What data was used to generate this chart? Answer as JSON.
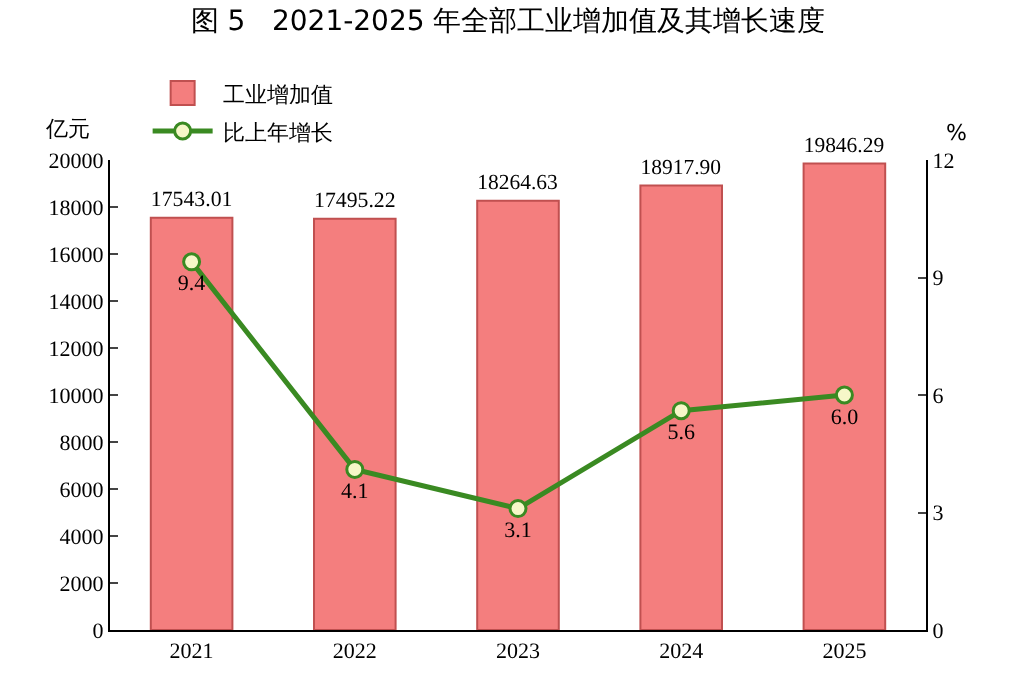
{
  "chart_data": {
    "type": "bar",
    "title": "图 5   2021-2025 年全部工业增加值及其增长速度",
    "ylabel": "亿元",
    "y2label": "%",
    "categories": [
      "2021",
      "2022",
      "2023",
      "2024",
      "2025"
    ],
    "series": [
      {
        "name": "工业增加值",
        "color": "#f47e7e",
        "values": [
          17543.01,
          17495.22,
          18264.63,
          18917.9,
          19846.29
        ],
        "value_labels": [
          "17543.01",
          "17495.22",
          "18264.63",
          "18917.90",
          "19846.29"
        ]
      },
      {
        "name": "比上年增长",
        "type": "line",
        "axis": "y2",
        "color": "#3a8a22",
        "marker": "circle",
        "values": [
          9.4,
          4.1,
          3.1,
          5.6,
          6.0
        ],
        "value_labels": [
          "9.4",
          "4.1",
          "3.1",
          "5.6",
          "6.0"
        ]
      }
    ],
    "ylim": [
      0,
      20000
    ],
    "yticks": [
      0,
      2000,
      4000,
      6000,
      8000,
      10000,
      12000,
      14000,
      16000,
      18000,
      20000
    ],
    "y2lim": [
      0,
      12
    ],
    "y2ticks": [
      0,
      3,
      6,
      9,
      12
    ],
    "grid": false,
    "legend": "top left"
  }
}
